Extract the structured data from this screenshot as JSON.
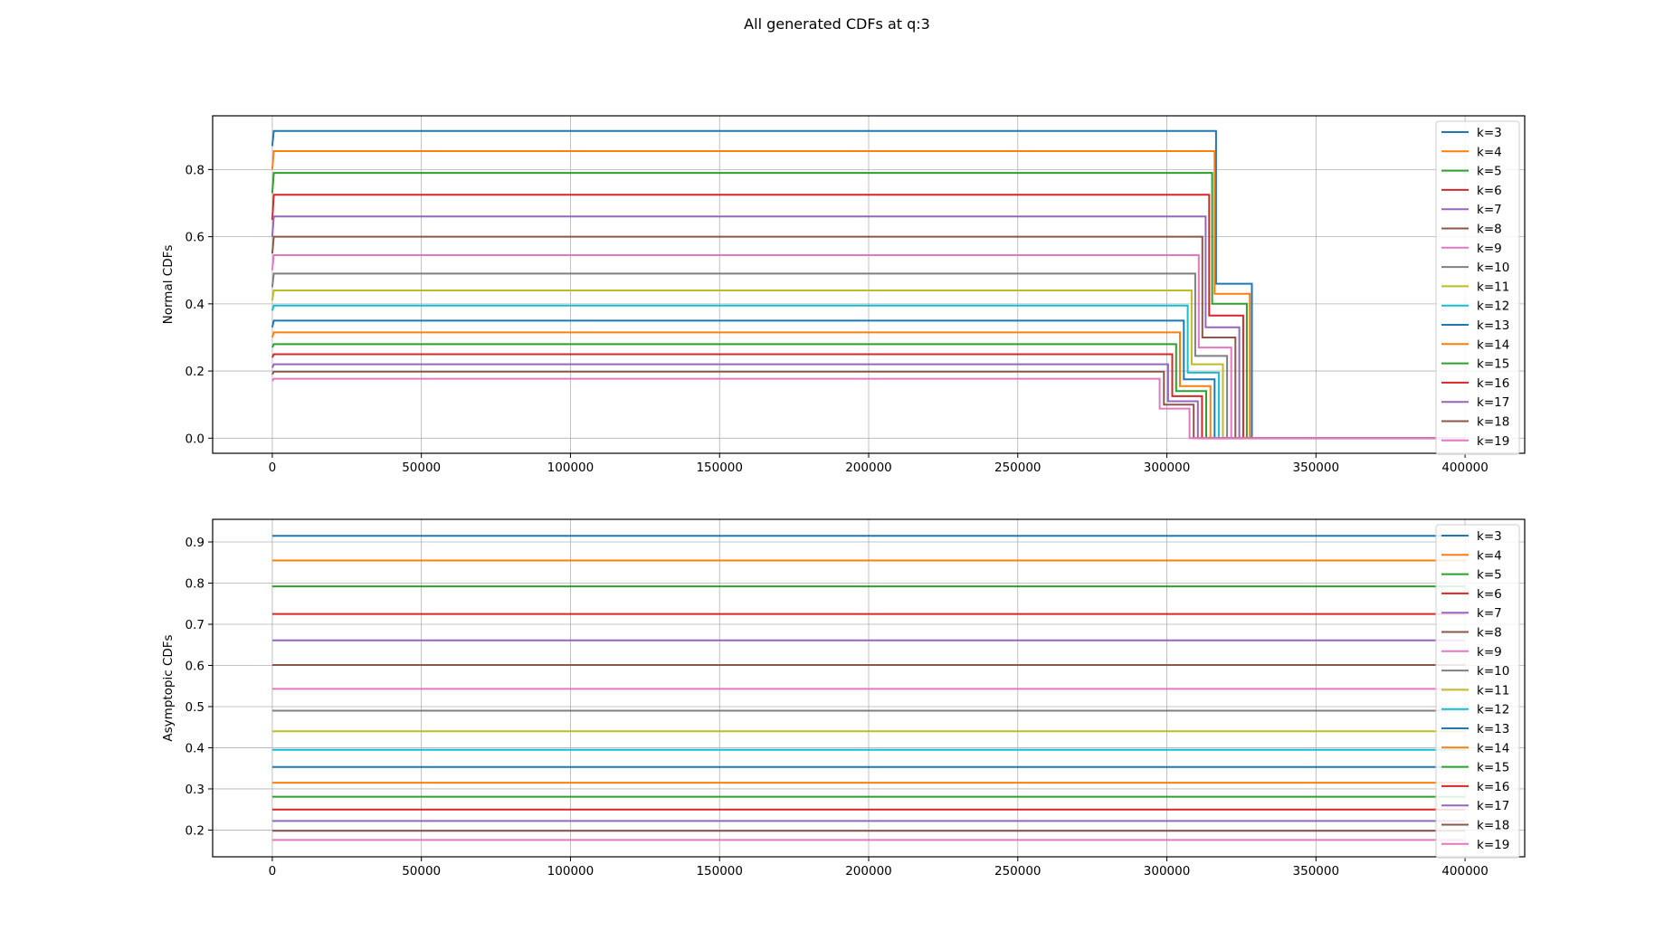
{
  "figure": {
    "title": "All generated CDFs at q:3"
  },
  "colors": [
    "#1f77b4",
    "#ff7f0e",
    "#2ca02c",
    "#d62728",
    "#9467bd",
    "#8c564b",
    "#e377c2",
    "#7f7f7f",
    "#bcbd22",
    "#17becf",
    "#1f77b4",
    "#ff7f0e",
    "#2ca02c",
    "#d62728",
    "#9467bd",
    "#8c564b",
    "#e377c2"
  ],
  "chart_data": [
    {
      "type": "line",
      "title": "",
      "xlabel": "",
      "ylabel": "Normal CDFs",
      "xlim": [
        -20000,
        420000
      ],
      "ylim": [
        -0.045,
        0.96
      ],
      "xticks": [
        0,
        50000,
        100000,
        150000,
        200000,
        250000,
        300000,
        350000,
        400000
      ],
      "xtick_labels": [
        "0",
        "50000",
        "100000",
        "150000",
        "200000",
        "250000",
        "300000",
        "350000",
        "400000"
      ],
      "yticks": [
        0.0,
        0.2,
        0.4,
        0.6,
        0.8
      ],
      "ytick_labels": [
        "0.0",
        "0.2",
        "0.4",
        "0.6",
        "0.8"
      ],
      "grid": true,
      "legend": "upper right",
      "series": [
        {
          "name": "k=3",
          "x": [
            0,
            500,
            316500,
            316500,
            328500,
            328500,
            400000
          ],
          "y": [
            0.87,
            0.915,
            0.915,
            0.46,
            0.46,
            0.0,
            0.0
          ]
        },
        {
          "name": "k=4",
          "x": [
            0,
            500,
            316000,
            316000,
            327800,
            327800,
            400000
          ],
          "y": [
            0.8,
            0.855,
            0.855,
            0.43,
            0.43,
            0.0,
            0.0
          ]
        },
        {
          "name": "k=5",
          "x": [
            0,
            500,
            315200,
            315200,
            326800,
            326800,
            400000
          ],
          "y": [
            0.73,
            0.79,
            0.79,
            0.4,
            0.4,
            0.0,
            0.0
          ]
        },
        {
          "name": "k=6",
          "x": [
            0,
            500,
            314200,
            314200,
            325600,
            325600,
            400000
          ],
          "y": [
            0.65,
            0.725,
            0.725,
            0.365,
            0.365,
            0.0,
            0.0
          ]
        },
        {
          "name": "k=7",
          "x": [
            0,
            500,
            313000,
            313000,
            324300,
            324300,
            400000
          ],
          "y": [
            0.6,
            0.66,
            0.66,
            0.33,
            0.33,
            0.0,
            0.0
          ]
        },
        {
          "name": "k=8",
          "x": [
            0,
            500,
            311900,
            311900,
            323000,
            323000,
            400000
          ],
          "y": [
            0.55,
            0.6,
            0.6,
            0.3,
            0.3,
            0.0,
            0.0
          ]
        },
        {
          "name": "k=9",
          "x": [
            0,
            500,
            310700,
            310700,
            321600,
            321600,
            400000
          ],
          "y": [
            0.5,
            0.545,
            0.545,
            0.27,
            0.27,
            0.0,
            0.0
          ]
        },
        {
          "name": "k=10",
          "x": [
            0,
            500,
            309500,
            309500,
            320200,
            320200,
            400000
          ],
          "y": [
            0.45,
            0.49,
            0.49,
            0.245,
            0.245,
            0.0,
            0.0
          ]
        },
        {
          "name": "k=11",
          "x": [
            0,
            500,
            308300,
            308300,
            318800,
            318800,
            400000
          ],
          "y": [
            0.41,
            0.44,
            0.44,
            0.22,
            0.22,
            0.0,
            0.0
          ]
        },
        {
          "name": "k=12",
          "x": [
            0,
            500,
            307000,
            307000,
            317400,
            317400,
            400000
          ],
          "y": [
            0.38,
            0.395,
            0.395,
            0.195,
            0.195,
            0.0,
            0.0
          ]
        },
        {
          "name": "k=13",
          "x": [
            0,
            500,
            305700,
            305700,
            316000,
            316000,
            400000
          ],
          "y": [
            0.33,
            0.35,
            0.35,
            0.175,
            0.175,
            0.0,
            0.0
          ]
        },
        {
          "name": "k=14",
          "x": [
            0,
            500,
            304400,
            304400,
            314600,
            314600,
            400000
          ],
          "y": [
            0.3,
            0.315,
            0.315,
            0.155,
            0.155,
            0.0,
            0.0
          ]
        },
        {
          "name": "k=15",
          "x": [
            0,
            500,
            303100,
            303100,
            313200,
            313200,
            400000
          ],
          "y": [
            0.27,
            0.28,
            0.28,
            0.14,
            0.14,
            0.0,
            0.0
          ]
        },
        {
          "name": "k=16",
          "x": [
            0,
            500,
            301800,
            301800,
            311800,
            311800,
            400000
          ],
          "y": [
            0.24,
            0.25,
            0.25,
            0.125,
            0.125,
            0.0,
            0.0
          ]
        },
        {
          "name": "k=17",
          "x": [
            0,
            500,
            300400,
            300400,
            310400,
            310400,
            400000
          ],
          "y": [
            0.21,
            0.22,
            0.22,
            0.11,
            0.11,
            0.0,
            0.0
          ]
        },
        {
          "name": "k=18",
          "x": [
            0,
            500,
            299000,
            299000,
            309000,
            309000,
            400000
          ],
          "y": [
            0.19,
            0.198,
            0.198,
            0.1,
            0.1,
            0.0,
            0.0
          ]
        },
        {
          "name": "k=19",
          "x": [
            0,
            500,
            297600,
            297600,
            307600,
            307600,
            400000
          ],
          "y": [
            0.17,
            0.177,
            0.177,
            0.088,
            0.088,
            0.0,
            0.0
          ]
        }
      ]
    },
    {
      "type": "line",
      "title": "",
      "xlabel": "",
      "ylabel": "Asymptopic CDFs",
      "xlim": [
        -20000,
        420000
      ],
      "ylim": [
        0.135,
        0.955
      ],
      "xticks": [
        0,
        50000,
        100000,
        150000,
        200000,
        250000,
        300000,
        350000,
        400000
      ],
      "xtick_labels": [
        "0",
        "50000",
        "100000",
        "150000",
        "200000",
        "250000",
        "300000",
        "350000",
        "400000"
      ],
      "yticks": [
        0.2,
        0.3,
        0.4,
        0.5,
        0.6,
        0.7,
        0.8,
        0.9
      ],
      "ytick_labels": [
        "0.2",
        "0.3",
        "0.4",
        "0.5",
        "0.6",
        "0.7",
        "0.8",
        "0.9"
      ],
      "grid": true,
      "legend": "upper right",
      "series": [
        {
          "name": "k=3",
          "x": [
            0,
            400000
          ],
          "y": [
            0.915,
            0.915
          ]
        },
        {
          "name": "k=4",
          "x": [
            0,
            400000
          ],
          "y": [
            0.855,
            0.855
          ]
        },
        {
          "name": "k=5",
          "x": [
            0,
            400000
          ],
          "y": [
            0.792,
            0.792
          ]
        },
        {
          "name": "k=6",
          "x": [
            0,
            400000
          ],
          "y": [
            0.725,
            0.725
          ]
        },
        {
          "name": "k=7",
          "x": [
            0,
            400000
          ],
          "y": [
            0.661,
            0.661
          ]
        },
        {
          "name": "k=8",
          "x": [
            0,
            400000
          ],
          "y": [
            0.601,
            0.601
          ]
        },
        {
          "name": "k=9",
          "x": [
            0,
            400000
          ],
          "y": [
            0.543,
            0.543
          ]
        },
        {
          "name": "k=10",
          "x": [
            0,
            400000
          ],
          "y": [
            0.49,
            0.49
          ]
        },
        {
          "name": "k=11",
          "x": [
            0,
            400000
          ],
          "y": [
            0.44,
            0.44
          ]
        },
        {
          "name": "k=12",
          "x": [
            0,
            400000
          ],
          "y": [
            0.395,
            0.395
          ]
        },
        {
          "name": "k=13",
          "x": [
            0,
            400000
          ],
          "y": [
            0.353,
            0.353
          ]
        },
        {
          "name": "k=14",
          "x": [
            0,
            400000
          ],
          "y": [
            0.315,
            0.315
          ]
        },
        {
          "name": "k=15",
          "x": [
            0,
            400000
          ],
          "y": [
            0.281,
            0.281
          ]
        },
        {
          "name": "k=16",
          "x": [
            0,
            400000
          ],
          "y": [
            0.25,
            0.25
          ]
        },
        {
          "name": "k=17",
          "x": [
            0,
            400000
          ],
          "y": [
            0.222,
            0.222
          ]
        },
        {
          "name": "k=18",
          "x": [
            0,
            400000
          ],
          "y": [
            0.198,
            0.198
          ]
        },
        {
          "name": "k=19",
          "x": [
            0,
            400000
          ],
          "y": [
            0.176,
            0.176
          ]
        }
      ]
    }
  ]
}
